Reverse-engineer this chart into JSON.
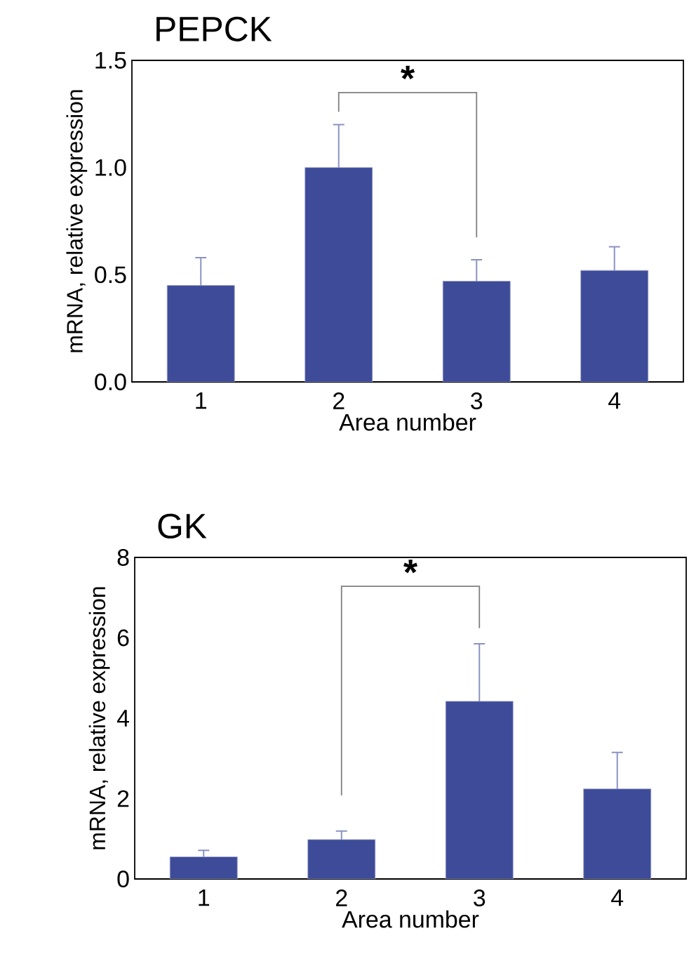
{
  "chart_data": [
    {
      "type": "bar",
      "title": "PEPCK",
      "xlabel": "Area number",
      "ylabel": "mRNA, relative expression",
      "categories": [
        "1",
        "2",
        "3",
        "4"
      ],
      "values": [
        0.45,
        1.0,
        0.47,
        0.52
      ],
      "errors": [
        [
          0.45,
          0.58
        ],
        [
          1.0,
          1.2
        ],
        [
          0.47,
          0.57
        ],
        [
          0.52,
          0.63
        ]
      ],
      "color": "#3d4b99",
      "ylim": [
        0,
        1.5
      ],
      "yticks": [
        {
          "value": 0,
          "label": "0.0"
        },
        {
          "value": 0.5,
          "label": "0.5"
        },
        {
          "value": 1,
          "label": "1.0"
        },
        {
          "value": 1.5,
          "label": "1.5"
        }
      ],
      "annotations": [
        "*"
      ]
    },
    {
      "type": "bar",
      "title": "GK",
      "xlabel": "Area number",
      "ylabel": "mRNA, relative expression",
      "categories": [
        "1",
        "2",
        "3",
        "4"
      ],
      "values": [
        0.55,
        0.98,
        4.42,
        2.24
      ],
      "errors": [
        [
          0.55,
          0.71
        ],
        [
          0.98,
          1.19
        ],
        [
          4.42,
          5.85
        ],
        [
          2.24,
          3.15
        ]
      ],
      "color": "#3d4b99",
      "ylim": [
        0,
        8
      ],
      "yticks": [
        0,
        2,
        4,
        6,
        8
      ],
      "annotations": [
        "*"
      ]
    }
  ]
}
